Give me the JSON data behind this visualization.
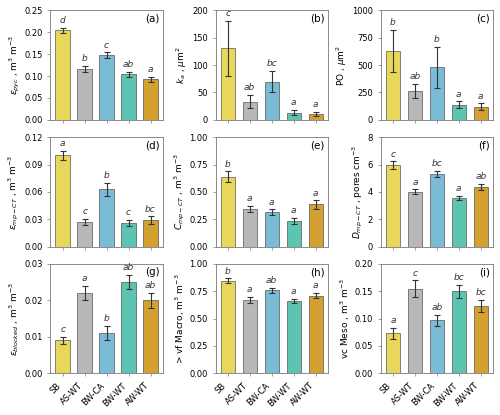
{
  "categories": [
    "SB",
    "AS-WT",
    "BW-CA",
    "BW-WT",
    "AW-WT"
  ],
  "bar_colors": [
    "#e8d75a",
    "#b8b8b8",
    "#7abcd6",
    "#5cc4b0",
    "#d4a030"
  ],
  "panels": [
    {
      "label": "(a)",
      "ylabel": "$\\varepsilon_{pyc}$ , m$^3$ m$^{-3}$",
      "ylim": [
        0,
        0.25
      ],
      "yticks": [
        0.0,
        0.05,
        0.1,
        0.15,
        0.2,
        0.25
      ],
      "values": [
        0.205,
        0.117,
        0.148,
        0.104,
        0.093
      ],
      "errors": [
        0.006,
        0.007,
        0.006,
        0.006,
        0.006
      ],
      "letters": [
        "d",
        "b",
        "c",
        "ab",
        "a"
      ]
    },
    {
      "label": "(b)",
      "ylabel": "$k_a$ , $\\mu$m$^2$",
      "ylim": [
        0,
        200
      ],
      "yticks": [
        0,
        50,
        100,
        150,
        200
      ],
      "values": [
        131,
        33,
        70,
        13,
        11
      ],
      "errors": [
        50,
        12,
        20,
        5,
        4
      ],
      "letters": [
        "c",
        "ab",
        "bc",
        "a",
        "a"
      ]
    },
    {
      "label": "(c)",
      "ylabel": "PO , $\\mu$m$^2$",
      "ylim": [
        0,
        1000
      ],
      "yticks": [
        0,
        250,
        500,
        750,
        1000
      ],
      "values": [
        630,
        265,
        480,
        140,
        120
      ],
      "errors": [
        195,
        65,
        185,
        30,
        30
      ],
      "letters": [
        "b",
        "ab",
        "b",
        "a",
        "a"
      ]
    },
    {
      "label": "(d)",
      "ylabel": "$\\varepsilon_{mp-CT}$ , m$^3$ m$^{-3}$",
      "ylim": [
        0,
        0.12
      ],
      "yticks": [
        0.0,
        0.03,
        0.06,
        0.09,
        0.12
      ],
      "values": [
        0.1,
        0.027,
        0.063,
        0.026,
        0.029
      ],
      "errors": [
        0.005,
        0.003,
        0.007,
        0.003,
        0.004
      ],
      "letters": [
        "a",
        "c",
        "b",
        "c",
        "bc"
      ]
    },
    {
      "label": "(e)",
      "ylabel": "$C_{mp-CT}$ , m$^3$ m$^{-3}$",
      "ylim": [
        0,
        1.0
      ],
      "yticks": [
        0.0,
        0.25,
        0.5,
        0.75,
        1.0
      ],
      "values": [
        0.64,
        0.345,
        0.315,
        0.235,
        0.385
      ],
      "errors": [
        0.048,
        0.03,
        0.025,
        0.028,
        0.038
      ],
      "letters": [
        "b",
        "a",
        "a",
        "a",
        "a"
      ]
    },
    {
      "label": "(f)",
      "ylabel": "$D_{mp-CT}$ , pores cm$^{-3}$",
      "ylim": [
        0,
        8
      ],
      "yticks": [
        0,
        2,
        4,
        6,
        8
      ],
      "values": [
        5.95,
        4.0,
        5.3,
        3.55,
        4.35
      ],
      "errors": [
        0.28,
        0.18,
        0.23,
        0.18,
        0.22
      ],
      "letters": [
        "c",
        "a",
        "bc",
        "a",
        "ab"
      ]
    },
    {
      "label": "(g)",
      "ylabel": "$\\varepsilon_{blocked}$ , m$^3$ m$^{-3}$",
      "ylim": [
        0,
        0.03
      ],
      "yticks": [
        0.0,
        0.01,
        0.02,
        0.03
      ],
      "values": [
        0.009,
        0.022,
        0.011,
        0.025,
        0.02
      ],
      "errors": [
        0.001,
        0.002,
        0.002,
        0.002,
        0.002
      ],
      "letters": [
        "c",
        "a",
        "b",
        "ab",
        "ab"
      ]
    },
    {
      "label": "(h)",
      "ylabel": "> vf Macro, m$^3$ m$^{-3}$",
      "ylim": [
        0,
        1.0
      ],
      "yticks": [
        0.0,
        0.25,
        0.5,
        0.75,
        1.0
      ],
      "values": [
        0.845,
        0.668,
        0.76,
        0.66,
        0.71
      ],
      "errors": [
        0.022,
        0.028,
        0.022,
        0.022,
        0.022
      ],
      "letters": [
        "b",
        "a",
        "ab",
        "a",
        "a"
      ]
    },
    {
      "label": "(i)",
      "ylabel": "vc Meso , m$^3$ m$^{-3}$",
      "ylim": [
        0,
        0.2
      ],
      "yticks": [
        0.0,
        0.05,
        0.1,
        0.15,
        0.2
      ],
      "values": [
        0.073,
        0.155,
        0.097,
        0.15,
        0.123
      ],
      "errors": [
        0.01,
        0.015,
        0.01,
        0.012,
        0.011
      ],
      "letters": [
        "a",
        "c",
        "ab",
        "bc",
        "bc"
      ]
    }
  ],
  "background_color": "#ffffff",
  "bar_edge_color": "#555555",
  "bar_edge_width": 0.5,
  "error_color": "#333333",
  "letter_fontsize": 6.5,
  "label_fontsize": 6.5,
  "tick_fontsize": 6,
  "panel_label_fontsize": 7.5
}
